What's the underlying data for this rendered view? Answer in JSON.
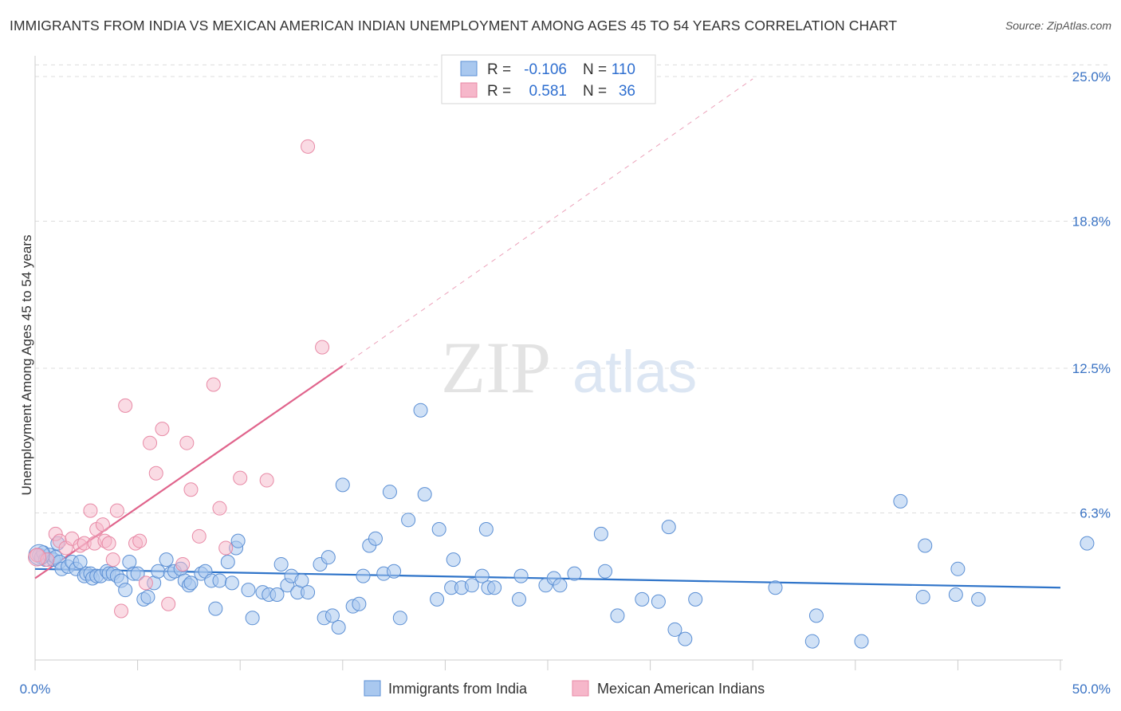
{
  "title": "IMMIGRANTS FROM INDIA VS MEXICAN AMERICAN INDIAN UNEMPLOYMENT AMONG AGES 45 TO 54 YEARS CORRELATION CHART",
  "source": "Source: ZipAtlas.com",
  "watermark": {
    "zip": "ZIP",
    "atlas": "atlas"
  },
  "colors": {
    "blue_fill": "#a9c8ef",
    "blue_stroke": "#5b8fd4",
    "blue_line": "#2f74c9",
    "pink_fill": "#f6b7ca",
    "pink_stroke": "#e88aa6",
    "pink_line": "#e0648c",
    "tick_text": "#3a73c4",
    "grid": "#dddddd"
  },
  "legend_top": {
    "rows": [
      {
        "r_label": "R =",
        "r_value": "-0.106",
        "n_label": "N =",
        "n_value": "110"
      },
      {
        "r_label": "R =",
        "r_value": "0.581",
        "n_label": "N =",
        "n_value": "36"
      }
    ]
  },
  "chart_data": {
    "type": "scatter",
    "title": "IMMIGRANTS FROM INDIA VS MEXICAN AMERICAN INDIAN UNEMPLOYMENT AMONG AGES 45 TO 54 YEARS CORRELATION CHART",
    "xlabel": "",
    "ylabel": "Unemployment Among Ages 45 to 54 years",
    "xlim": [
      0,
      50
    ],
    "ylim": [
      0,
      25.5
    ],
    "x_tick_labels": [
      "0.0%",
      "50.0%"
    ],
    "y_ticks": [
      6.3,
      12.5,
      18.8,
      25.0
    ],
    "y_tick_labels": [
      "6.3%",
      "12.5%",
      "18.8%",
      "25.0%"
    ],
    "grid": true,
    "legend_position": "bottom",
    "series": [
      {
        "name": "Immigrants from India",
        "color": "#a9c8ef",
        "trend": {
          "x": [
            0,
            50
          ],
          "y": [
            3.9,
            3.1
          ],
          "style": "solid"
        },
        "points": [
          [
            0.2,
            4.5
          ],
          [
            0.3,
            4.4
          ],
          [
            0.4,
            4.6
          ],
          [
            0.5,
            4.3
          ],
          [
            0.7,
            4.5
          ],
          [
            0.9,
            4.3
          ],
          [
            1.0,
            4.4
          ],
          [
            1.1,
            5.0
          ],
          [
            1.2,
            4.2
          ],
          [
            1.3,
            3.9
          ],
          [
            1.6,
            4.0
          ],
          [
            1.8,
            4.2
          ],
          [
            2.0,
            3.9
          ],
          [
            2.2,
            4.2
          ],
          [
            2.4,
            3.6
          ],
          [
            2.5,
            3.7
          ],
          [
            2.7,
            3.7
          ],
          [
            2.8,
            3.5
          ],
          [
            3.0,
            3.6
          ],
          [
            3.2,
            3.6
          ],
          [
            3.5,
            3.8
          ],
          [
            3.6,
            3.7
          ],
          [
            3.8,
            3.7
          ],
          [
            4.0,
            3.6
          ],
          [
            4.2,
            3.4
          ],
          [
            4.4,
            3.0
          ],
          [
            4.6,
            4.2
          ],
          [
            4.8,
            3.7
          ],
          [
            5.0,
            3.7
          ],
          [
            5.3,
            2.6
          ],
          [
            5.5,
            2.7
          ],
          [
            5.8,
            3.3
          ],
          [
            6.0,
            3.8
          ],
          [
            6.4,
            4.3
          ],
          [
            6.6,
            3.7
          ],
          [
            6.8,
            3.8
          ],
          [
            7.1,
            3.9
          ],
          [
            7.3,
            3.4
          ],
          [
            7.5,
            3.2
          ],
          [
            7.6,
            3.3
          ],
          [
            8.1,
            3.7
          ],
          [
            8.3,
            3.8
          ],
          [
            8.6,
            3.4
          ],
          [
            8.8,
            2.2
          ],
          [
            9.0,
            3.4
          ],
          [
            9.4,
            4.2
          ],
          [
            9.6,
            3.3
          ],
          [
            9.8,
            4.8
          ],
          [
            9.9,
            5.1
          ],
          [
            10.4,
            3.0
          ],
          [
            10.6,
            1.8
          ],
          [
            11.1,
            2.9
          ],
          [
            11.4,
            2.8
          ],
          [
            11.8,
            2.8
          ],
          [
            12.0,
            4.1
          ],
          [
            12.3,
            3.2
          ],
          [
            12.5,
            3.6
          ],
          [
            12.8,
            2.9
          ],
          [
            13.0,
            3.4
          ],
          [
            13.3,
            2.9
          ],
          [
            13.9,
            4.1
          ],
          [
            14.1,
            1.8
          ],
          [
            14.3,
            4.4
          ],
          [
            14.5,
            1.9
          ],
          [
            14.8,
            1.4
          ],
          [
            15.0,
            7.5
          ],
          [
            15.5,
            2.3
          ],
          [
            15.8,
            2.4
          ],
          [
            16.0,
            3.6
          ],
          [
            16.3,
            4.9
          ],
          [
            16.6,
            5.2
          ],
          [
            17.0,
            3.7
          ],
          [
            17.3,
            7.2
          ],
          [
            17.5,
            3.8
          ],
          [
            17.8,
            1.8
          ],
          [
            18.2,
            6.0
          ],
          [
            19.0,
            7.1
          ],
          [
            18.8,
            10.7
          ],
          [
            19.6,
            2.6
          ],
          [
            19.7,
            5.6
          ],
          [
            20.3,
            3.1
          ],
          [
            20.4,
            4.3
          ],
          [
            20.8,
            3.1
          ],
          [
            21.3,
            3.2
          ],
          [
            21.8,
            3.6
          ],
          [
            22.0,
            5.6
          ],
          [
            22.1,
            3.1
          ],
          [
            22.4,
            3.1
          ],
          [
            23.6,
            2.6
          ],
          [
            23.7,
            3.6
          ],
          [
            24.9,
            3.2
          ],
          [
            25.3,
            3.5
          ],
          [
            25.6,
            3.2
          ],
          [
            26.3,
            3.7
          ],
          [
            27.6,
            5.4
          ],
          [
            27.8,
            3.8
          ],
          [
            28.4,
            1.9
          ],
          [
            29.6,
            2.6
          ],
          [
            30.4,
            2.5
          ],
          [
            30.9,
            5.7
          ],
          [
            31.2,
            1.3
          ],
          [
            31.7,
            0.9
          ],
          [
            32.2,
            2.6
          ],
          [
            36.1,
            3.1
          ],
          [
            37.9,
            0.8
          ],
          [
            38.1,
            1.9
          ],
          [
            40.3,
            0.8
          ],
          [
            42.2,
            6.8
          ],
          [
            43.3,
            2.7
          ],
          [
            43.4,
            4.9
          ],
          [
            44.9,
            2.8
          ],
          [
            45.0,
            3.9
          ],
          [
            46.0,
            2.6
          ],
          [
            51.3,
            5.0
          ]
        ]
      },
      {
        "name": "Mexican American Indians",
        "color": "#f6b7ca",
        "trend": {
          "x": [
            0,
            15
          ],
          "y": [
            3.5,
            12.6
          ],
          "style": "solid",
          "extension_x": [
            15,
            35
          ],
          "extension_y": [
            12.6,
            24.9
          ]
        },
        "points": [
          [
            0.1,
            4.5
          ],
          [
            0.6,
            4.3
          ],
          [
            1.0,
            5.4
          ],
          [
            1.2,
            5.1
          ],
          [
            1.5,
            4.8
          ],
          [
            1.8,
            5.2
          ],
          [
            2.2,
            4.9
          ],
          [
            2.4,
            5.0
          ],
          [
            2.7,
            6.4
          ],
          [
            2.9,
            5.0
          ],
          [
            3.0,
            5.6
          ],
          [
            3.3,
            5.8
          ],
          [
            3.4,
            5.1
          ],
          [
            3.6,
            5.0
          ],
          [
            3.8,
            4.3
          ],
          [
            4.0,
            6.4
          ],
          [
            4.2,
            2.1
          ],
          [
            4.4,
            10.9
          ],
          [
            4.9,
            5.0
          ],
          [
            5.1,
            5.1
          ],
          [
            5.4,
            3.3
          ],
          [
            5.6,
            9.3
          ],
          [
            5.9,
            8.0
          ],
          [
            6.2,
            9.9
          ],
          [
            6.5,
            2.4
          ],
          [
            7.2,
            4.1
          ],
          [
            7.4,
            9.3
          ],
          [
            7.6,
            7.3
          ],
          [
            8.0,
            5.3
          ],
          [
            8.7,
            11.8
          ],
          [
            9.0,
            6.5
          ],
          [
            9.3,
            4.8
          ],
          [
            10.0,
            7.8
          ],
          [
            11.3,
            7.7
          ],
          [
            13.3,
            22.0
          ],
          [
            14.0,
            13.4
          ]
        ]
      }
    ]
  }
}
